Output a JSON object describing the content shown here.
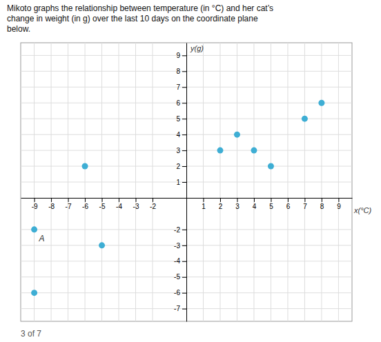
{
  "chart_data": {
    "type": "scatter",
    "title": [
      "Mikoto graphs the relationship between temperature (in °C) and her cat’s",
      "change in weight (in g) over the last 10 days on the coordinate plane",
      "below."
    ],
    "x_label": "x(°C)",
    "y_label": "y(g)",
    "x": [
      2,
      3,
      4,
      5,
      7,
      8,
      -6,
      -9,
      -5,
      -9
    ],
    "values": [
      3,
      4,
      3,
      2,
      5,
      6,
      2,
      -2,
      -3,
      -6
    ],
    "color": "#3eaed4",
    "xlim": [
      -9.8,
      9.8
    ],
    "ylim": [
      -7.8,
      9.8
    ],
    "xticks": [
      -9,
      -8,
      -7,
      -6,
      -5,
      -4,
      -3,
      -2,
      1,
      2,
      3,
      4,
      5,
      6,
      7,
      8,
      9
    ],
    "yticks": [
      -7,
      -6,
      -5,
      -4,
      -3,
      -2,
      1,
      2,
      3,
      4,
      5,
      6,
      7,
      8,
      9
    ],
    "grid": true,
    "annotations": [
      {
        "text": "3 of 7"
      },
      {
        "text": "A",
        "x": -9,
        "y": -2
      }
    ]
  }
}
